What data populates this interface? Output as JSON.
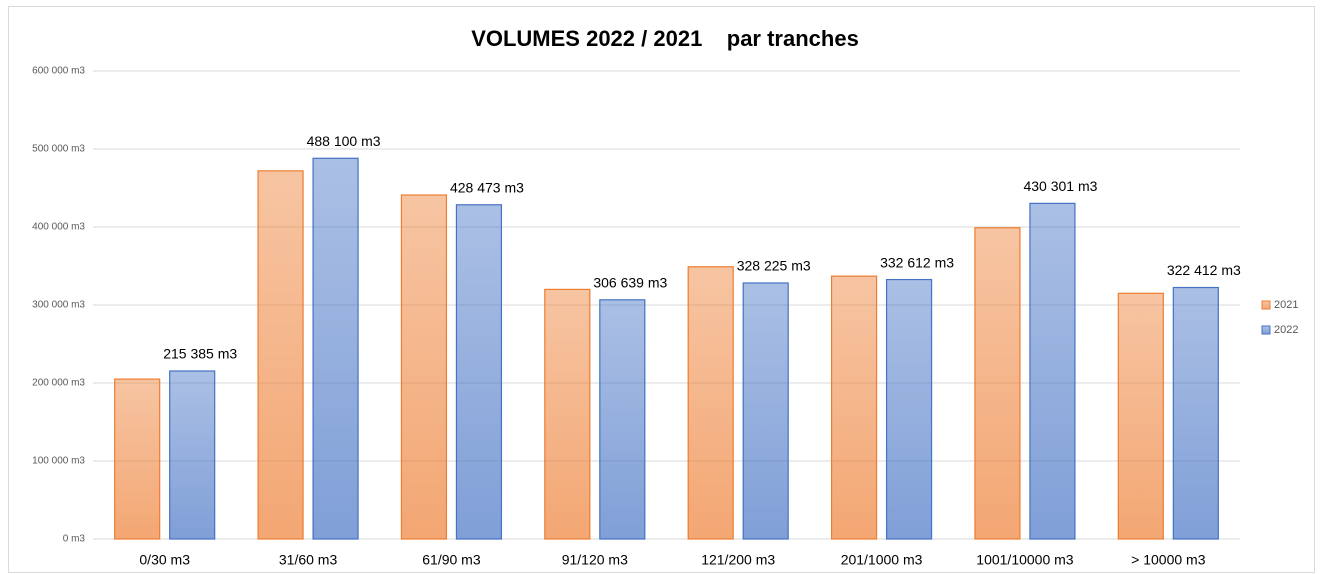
{
  "chart_data": {
    "type": "bar",
    "title": "VOLUMES 2022 / 2021    par tranches",
    "categories": [
      "0/30 m3",
      "31/60 m3",
      "61/90 m3",
      "91/120 m3",
      "121/200 m3",
      "201/1000 m3",
      "1001/10000 m3",
      "> 10000 m3"
    ],
    "series": [
      {
        "name": "2021",
        "color": "#ed7d31",
        "values": [
          205000,
          472000,
          441000,
          320000,
          349000,
          337000,
          399000,
          315000
        ]
      },
      {
        "name": "2022",
        "color": "#4472c4",
        "values": [
          215385,
          488100,
          428473,
          306639,
          328225,
          332612,
          430301,
          322412
        ],
        "value_labels": [
          "215 385 m3",
          "488 100 m3",
          "428 473 m3",
          "306 639 m3",
          "328 225 m3",
          "332 612 m3",
          "430 301 m3",
          "322 412 m3"
        ]
      }
    ],
    "ylim": [
      0,
      600000
    ],
    "yticks": [
      {
        "value": 0,
        "label": "0 m3"
      },
      {
        "value": 100000,
        "label": "100 000 m3"
      },
      {
        "value": 200000,
        "label": "200 000 m3"
      },
      {
        "value": 300000,
        "label": "300 000 m3"
      },
      {
        "value": 400000,
        "label": "400 000 m3"
      },
      {
        "value": 500000,
        "label": "500 000 m3"
      },
      {
        "value": 600000,
        "label": "600 000 m3"
      }
    ],
    "grid": true,
    "legend": "right"
  }
}
